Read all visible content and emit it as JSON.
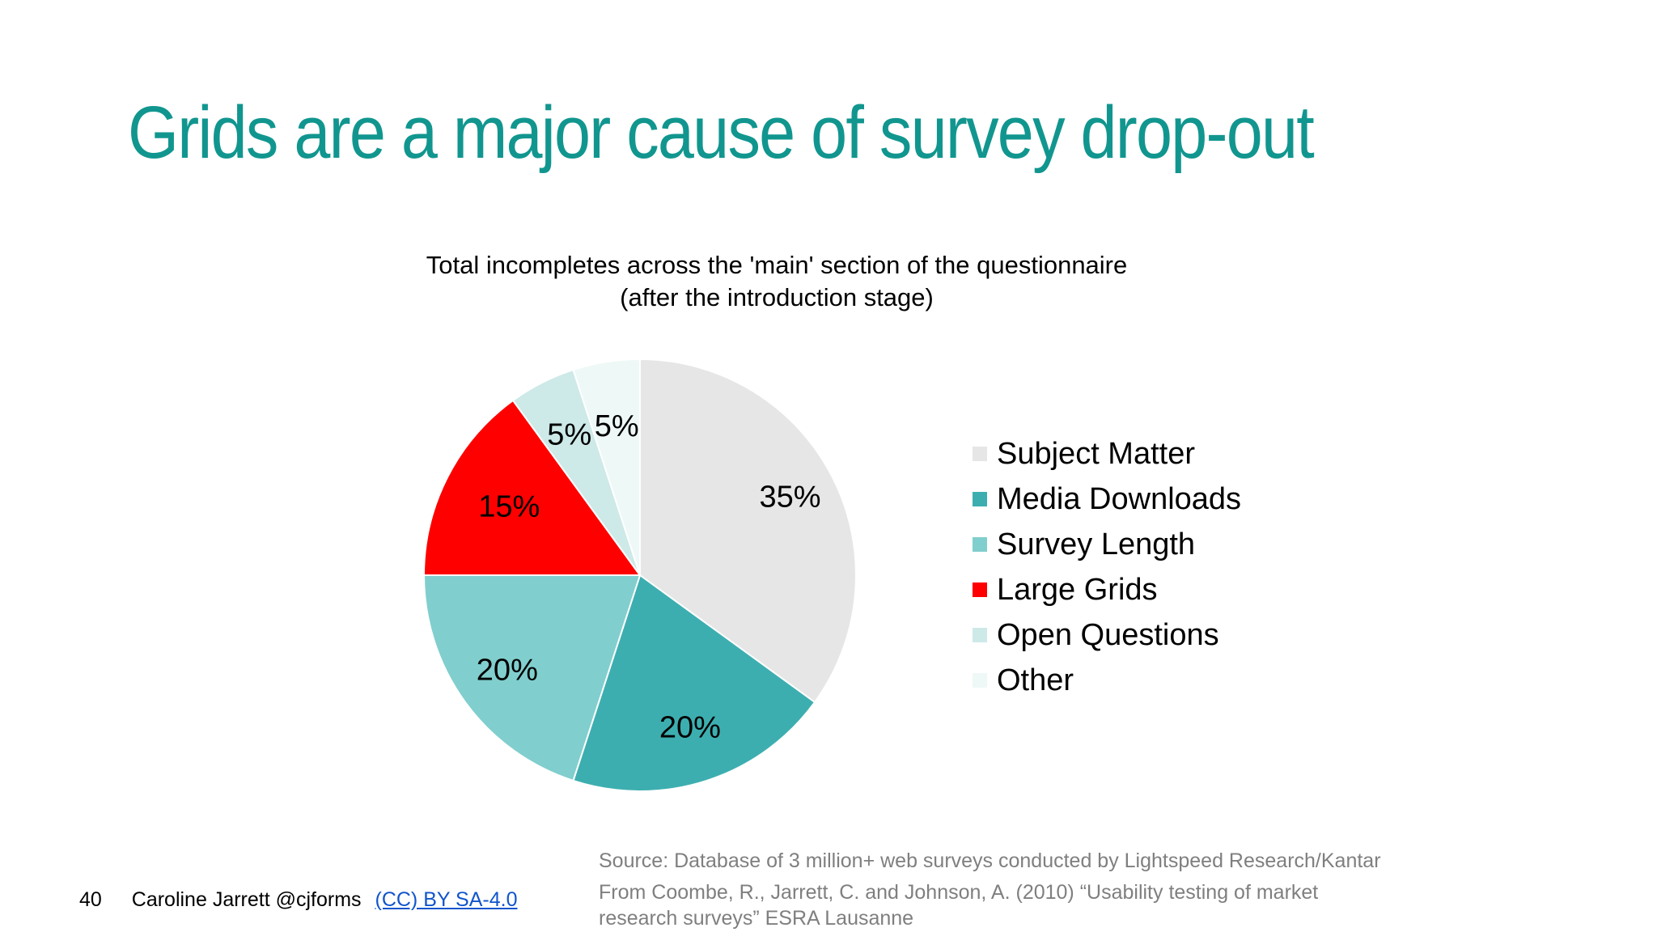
{
  "slide": {
    "title": "Grids are a major cause of survey drop-out"
  },
  "chart_data": {
    "type": "pie",
    "title_line1": "Total incompletes across the 'main' section of the questionnaire",
    "title_line2": "(after the introduction stage)",
    "slices": [
      {
        "label": "Subject Matter",
        "value": 35,
        "display": "35%",
        "color": "#e6e6e6"
      },
      {
        "label": "Media Downloads",
        "value": 20,
        "display": "20%",
        "color": "#3daeb0"
      },
      {
        "label": "Survey Length",
        "value": 20,
        "display": "20%",
        "color": "#81cece"
      },
      {
        "label": "Large Grids",
        "value": 15,
        "display": "15%",
        "color": "#ff0000"
      },
      {
        "label": "Open Questions",
        "value": 5,
        "display": "5%",
        "color": "#cde9e8"
      },
      {
        "label": "Other",
        "value": 5,
        "display": "5%",
        "color": "#eef8f7"
      }
    ],
    "legend_position": "right"
  },
  "source": {
    "line1": "Source: Database of 3 million+ web surveys conducted by Lightspeed Research/Kantar",
    "line2": "From Coombe, R., Jarrett, C. and Johnson, A. (2010) “Usability testing of market",
    "line3": "research surveys” ESRA Lausanne"
  },
  "footer": {
    "page_number": "40",
    "author": "Caroline Jarrett  @cjforms",
    "license": "(CC) BY SA-4.0"
  },
  "colors": {
    "title": "#11968f",
    "source_text": "#7f7f7f",
    "link": "#1155cc"
  }
}
